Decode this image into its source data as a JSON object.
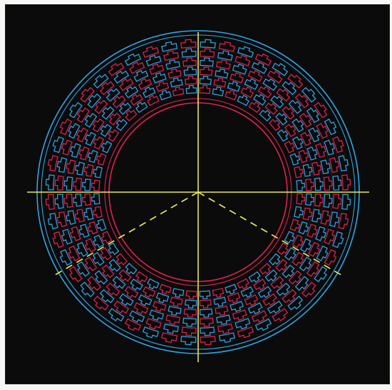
{
  "figure": {
    "background": "#0b0b0b",
    "page_background": "#f7f7f5",
    "colors": {
      "red_trace": "#e0234f",
      "blue_trace": "#2ea6e6",
      "axes": "#e8e85a"
    },
    "annulus": {
      "outer_ring_color": "blue",
      "inner_ring_color": "red",
      "sectors": 48,
      "layers": 6
    },
    "axes": {
      "horizontal": "solid",
      "vertical": "solid",
      "diagonals": "dashed",
      "diagonal_angles_deg": [
        210,
        330
      ]
    }
  }
}
